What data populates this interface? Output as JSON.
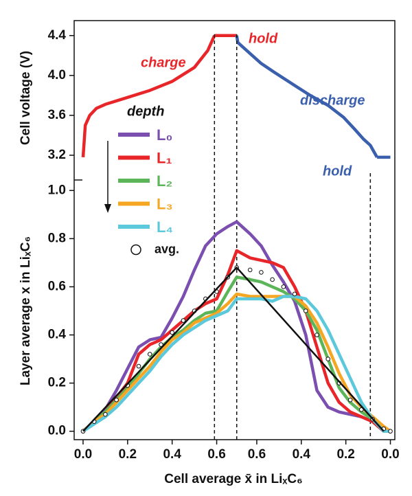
{
  "chart_data": [
    {
      "type": "line",
      "ylabel": "Cell voltage (V)",
      "xlim": [
        -0.04,
        1.4
      ],
      "ylim": [
        3.0,
        4.55
      ],
      "yticks": [
        3.2,
        3.6,
        {
          "value": 4,
          "label": "4.0"
        },
        4.4
      ],
      "series": [
        {
          "name": "charge",
          "color": "#e8262a",
          "x": [
            0,
            0.01,
            0.03,
            0.06,
            0.1,
            0.2,
            0.3,
            0.4,
            0.5,
            0.56,
            0.59
          ],
          "values": [
            3.18,
            3.5,
            3.6,
            3.67,
            3.71,
            3.78,
            3.85,
            3.94,
            4.08,
            4.25,
            4.4
          ]
        },
        {
          "name": "hold",
          "color": "#e8262a",
          "x": [
            0.59,
            0.69
          ],
          "values": [
            4.4,
            4.4
          ]
        },
        {
          "name": "discharge",
          "color": "#3a5fad",
          "x": [
            0.69,
            0.695,
            0.75,
            0.8,
            0.86,
            0.95,
            1.02,
            1.1,
            1.17,
            1.22,
            1.26,
            1.29,
            1.31,
            1.32
          ],
          "values": [
            4.4,
            4.33,
            4.22,
            4.12,
            4.03,
            3.9,
            3.8,
            3.7,
            3.58,
            3.46,
            3.36,
            3.3,
            3.22,
            3.18
          ]
        },
        {
          "name": "hold",
          "color": "#3a5fad",
          "x": [
            1.32,
            1.38
          ],
          "values": [
            3.18,
            3.18
          ]
        }
      ]
    },
    {
      "type": "line",
      "xlabel": "Cell average x̄ in LiₓC₆",
      "ylabel": "Layer average x in LiₓC₆",
      "legend_title": "depth",
      "xlim": [
        -0.04,
        1.4
      ],
      "ylim": [
        -0.035,
        1.035
      ],
      "xticks": [
        {
          "value": 0,
          "label": "0.0"
        },
        0.2,
        0.4,
        0.6,
        {
          "value": 0.78,
          "label": "0.6"
        },
        {
          "value": 0.98,
          "label": "0.4"
        },
        {
          "value": 1.18,
          "label": "0.2"
        },
        {
          "value": 1.38,
          "label": "0.0"
        }
      ],
      "yticks": [
        {
          "value": 0,
          "label": "0.0"
        },
        0.2,
        0.4,
        0.6,
        0.8,
        {
          "value": 1,
          "label": "1.0"
        }
      ],
      "reference_lines": [
        0.59,
        0.69,
        1.29
      ],
      "x": [
        0,
        0.05,
        0.1,
        0.15,
        0.2,
        0.25,
        0.3,
        0.35,
        0.4,
        0.45,
        0.5,
        0.55,
        0.6,
        0.65,
        0.69,
        0.75,
        0.8,
        0.85,
        0.9,
        0.95,
        1.0,
        1.05,
        1.1,
        1.15,
        1.2,
        1.25,
        1.3,
        1.35,
        1.38
      ],
      "series": [
        {
          "name": "L₀",
          "color": "#7b4fb0",
          "values": [
            0,
            0.04,
            0.09,
            0.17,
            0.26,
            0.35,
            0.38,
            0.39,
            0.47,
            0.56,
            0.67,
            0.77,
            0.82,
            0.85,
            0.87,
            0.82,
            0.77,
            0.69,
            0.62,
            0.54,
            0.4,
            0.17,
            0.1,
            0.08,
            0.07,
            0.06,
            0.04,
            0,
            0
          ]
        },
        {
          "name": "L₁",
          "color": "#e8262a",
          "values": [
            0,
            0.04,
            0.08,
            0.14,
            0.2,
            0.32,
            0.36,
            0.38,
            0.42,
            0.46,
            0.5,
            0.53,
            0.55,
            0.65,
            0.75,
            0.72,
            0.71,
            0.7,
            0.68,
            0.6,
            0.5,
            0.35,
            0.2,
            0.12,
            0.08,
            0.06,
            0.04,
            0,
            0
          ]
        },
        {
          "name": "L₂",
          "color": "#5db55a",
          "values": [
            0,
            0.04,
            0.08,
            0.13,
            0.18,
            0.24,
            0.3,
            0.35,
            0.39,
            0.42,
            0.46,
            0.49,
            0.5,
            0.58,
            0.64,
            0.63,
            0.62,
            0.6,
            0.58,
            0.55,
            0.5,
            0.42,
            0.3,
            0.18,
            0.12,
            0.08,
            0.05,
            0.01,
            0
          ]
        },
        {
          "name": "L₃",
          "color": "#f5a623",
          "values": [
            0,
            0.04,
            0.07,
            0.12,
            0.17,
            0.22,
            0.27,
            0.33,
            0.38,
            0.41,
            0.45,
            0.47,
            0.49,
            0.53,
            0.57,
            0.56,
            0.56,
            0.56,
            0.56,
            0.56,
            0.52,
            0.45,
            0.35,
            0.24,
            0.15,
            0.1,
            0.06,
            0.02,
            0
          ]
        },
        {
          "name": "L₄",
          "color": "#5bc8dc",
          "values": [
            0,
            0.03,
            0.06,
            0.1,
            0.15,
            0.2,
            0.25,
            0.31,
            0.36,
            0.4,
            0.43,
            0.46,
            0.48,
            0.5,
            0.55,
            0.55,
            0.55,
            0.54,
            0.56,
            0.56,
            0.55,
            0.5,
            0.42,
            0.32,
            0.22,
            0.12,
            0.05,
            0,
            0
          ]
        },
        {
          "name": "avg.",
          "color": "#111111",
          "style": "markers",
          "values": [
            0,
            0.04,
            0.07,
            0.13,
            0.19,
            0.27,
            0.32,
            0.36,
            0.41,
            0.46,
            0.5,
            0.55,
            0.58,
            0.64,
            0.68,
            0.67,
            0.66,
            0.63,
            0.6,
            0.57,
            0.5,
            0.4,
            0.3,
            0.2,
            0.13,
            0.09,
            0.05,
            0.01,
            0
          ]
        },
        {
          "color": "#111111",
          "x": [
            0,
            0.69,
            1.35
          ],
          "values": [
            0,
            0.68,
            0
          ]
        }
      ]
    }
  ]
}
